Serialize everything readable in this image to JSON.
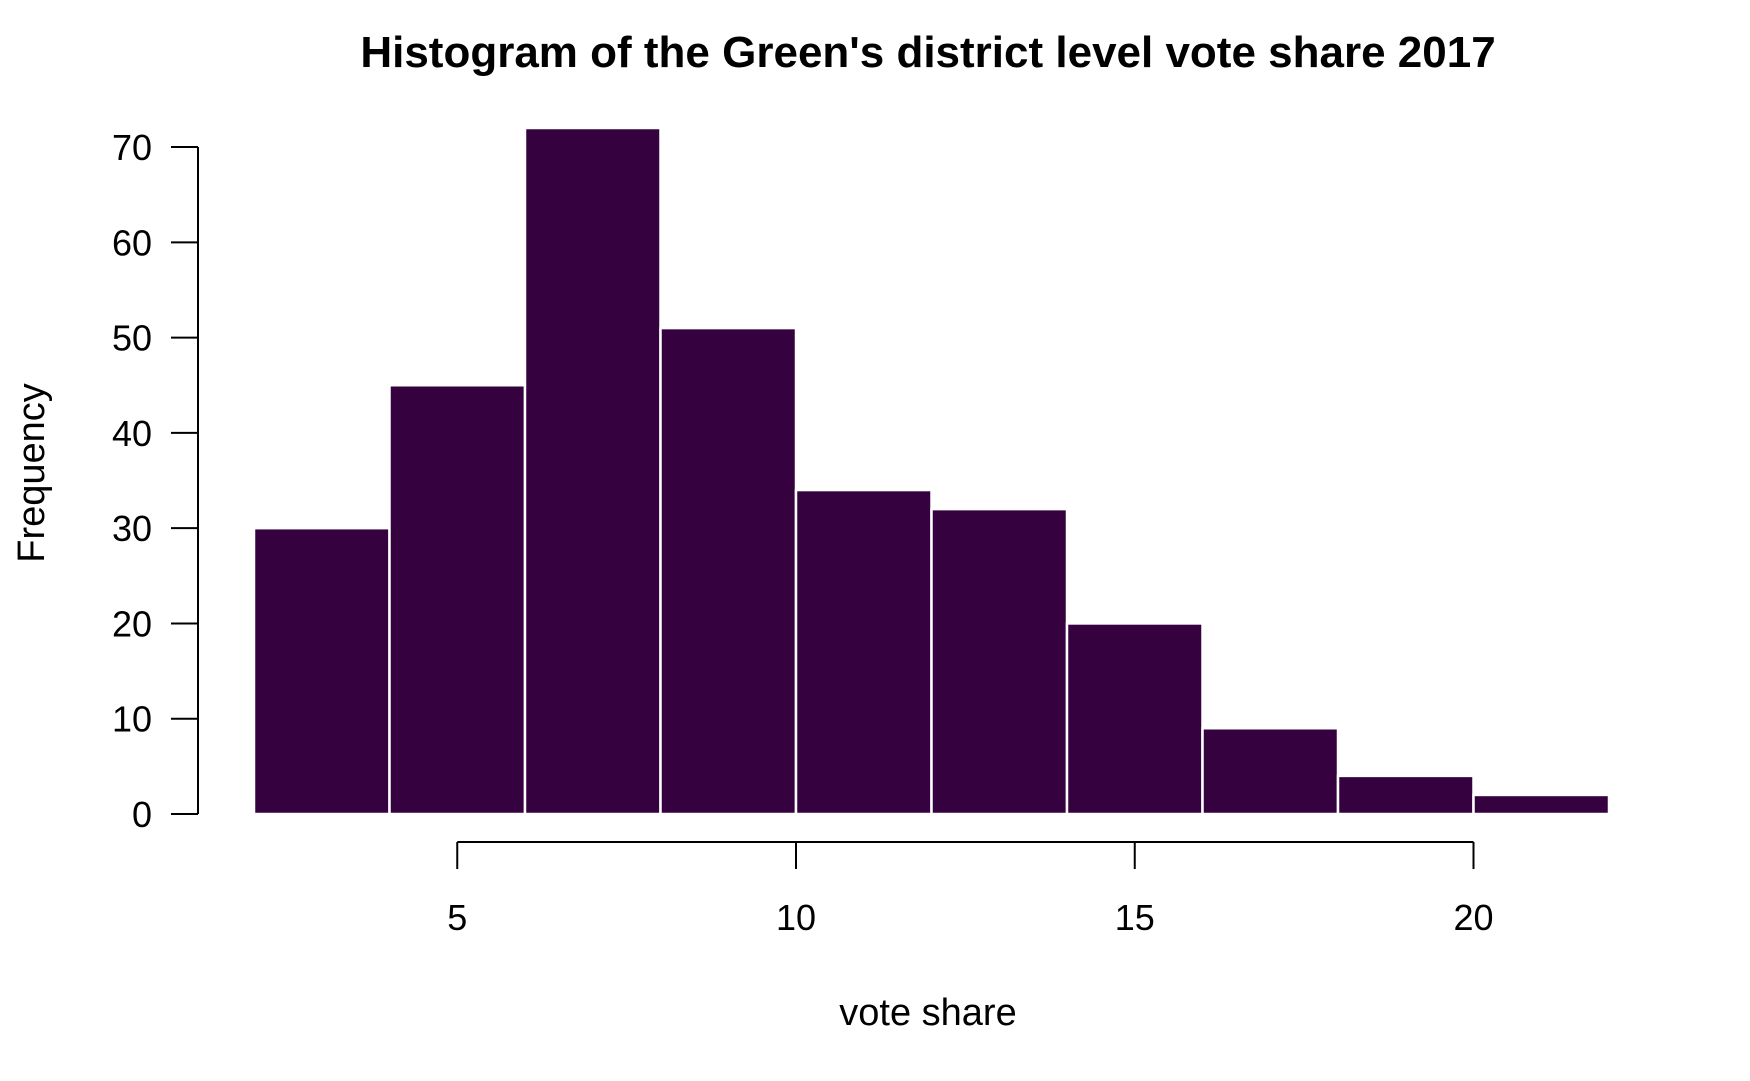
{
  "chart_data": {
    "type": "bar",
    "subtype": "histogram",
    "title": "Histogram of the Green's district level vote share 2017",
    "xlabel": "vote share",
    "ylabel": "Frequency",
    "bin_edges": [
      2,
      4,
      6,
      8,
      10,
      12,
      14,
      16,
      18,
      20,
      22
    ],
    "values": [
      30,
      45,
      72,
      51,
      34,
      32,
      20,
      9,
      4,
      2
    ],
    "xlim": [
      2,
      22
    ],
    "ylim": [
      0,
      72
    ],
    "x_ticks": [
      5,
      10,
      15,
      20
    ],
    "y_ticks": [
      0,
      10,
      20,
      30,
      40,
      50,
      60,
      70
    ],
    "grid": false,
    "bar_color": "#35013f",
    "bar_border_color": "#ffffff"
  }
}
